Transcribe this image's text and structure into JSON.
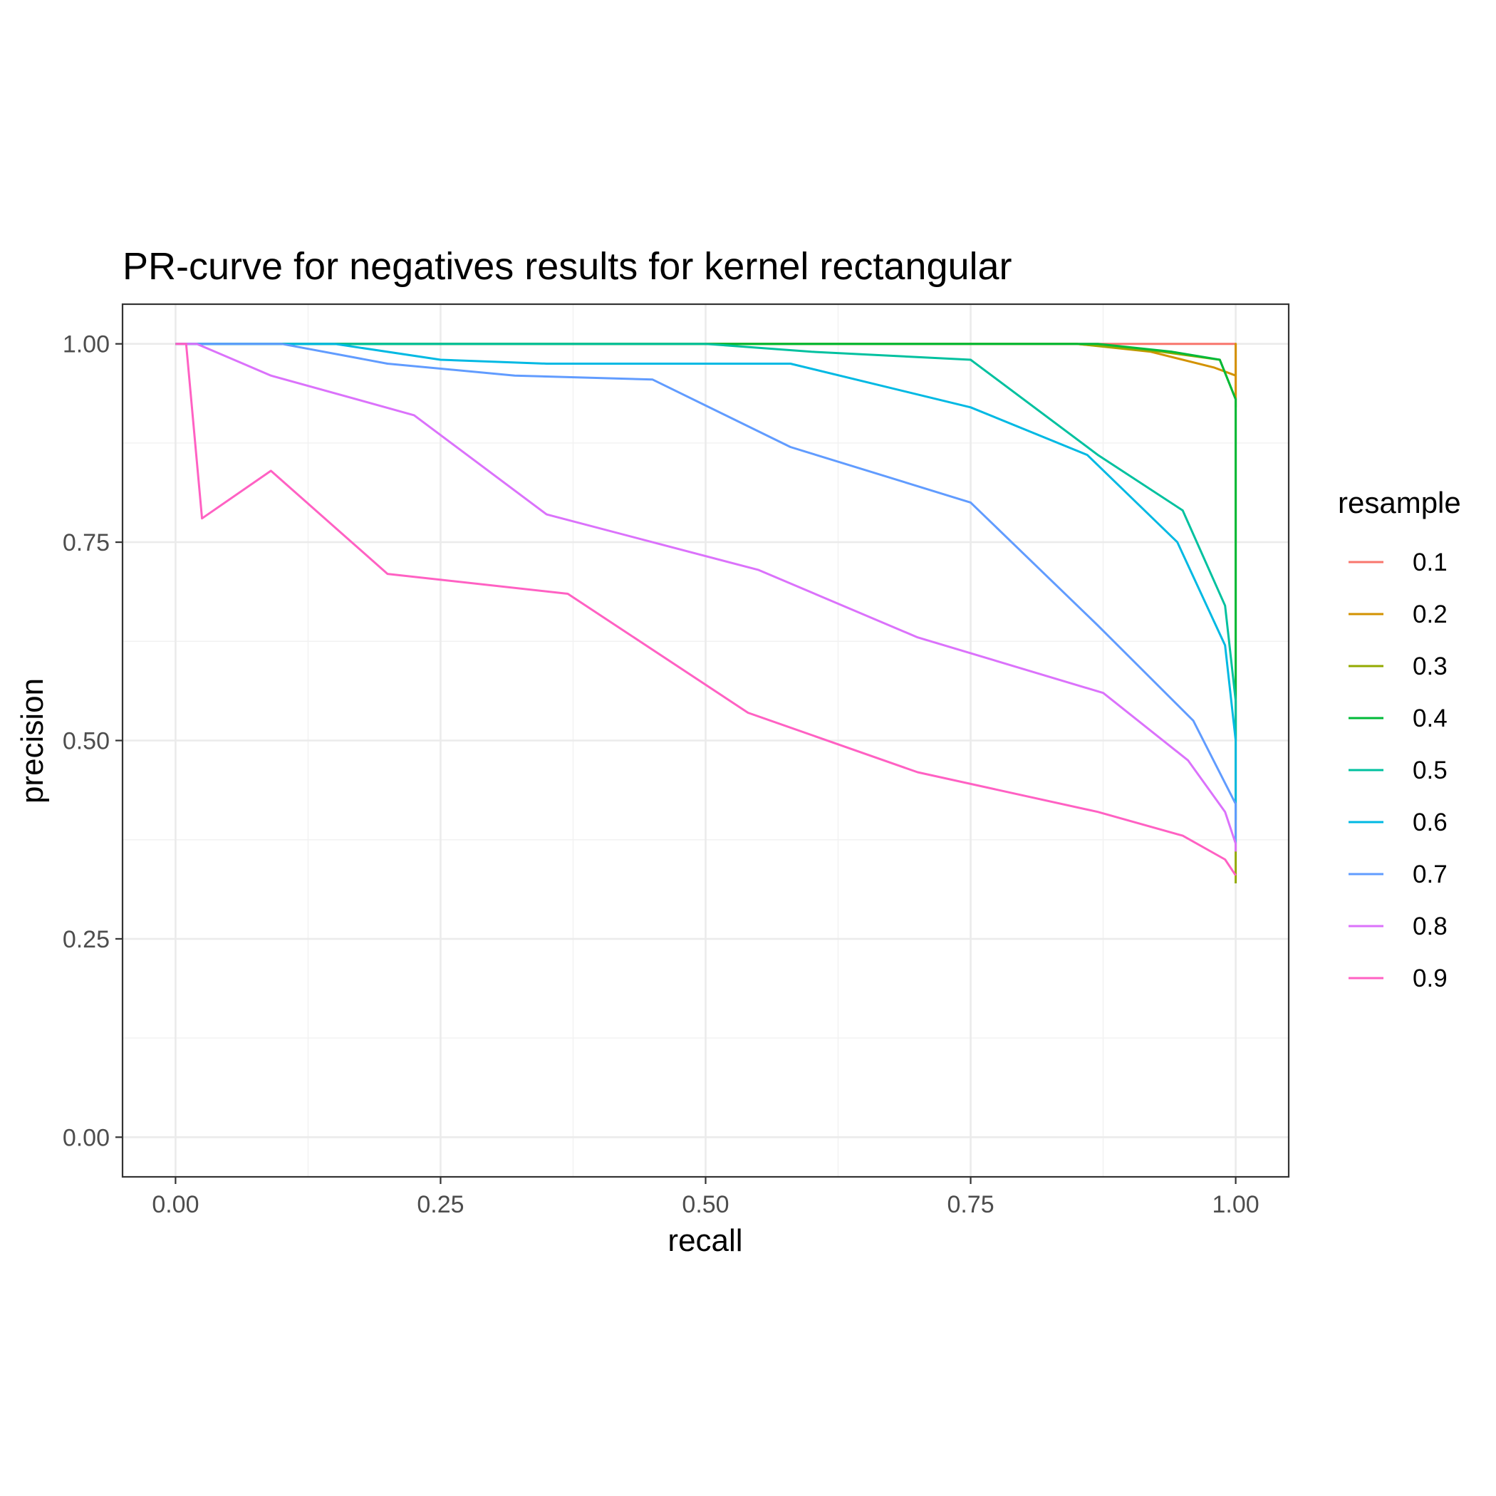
{
  "chart_data": {
    "type": "line",
    "title": "PR-curve for negatives results for kernel rectangular",
    "xlabel": "recall",
    "ylabel": "precision",
    "xlim": [
      -0.05,
      1.05
    ],
    "ylim": [
      -0.05,
      1.05
    ],
    "x_ticks": [
      0.0,
      0.25,
      0.5,
      0.75,
      1.0
    ],
    "x_tick_labels": [
      "0.00",
      "0.25",
      "0.50",
      "0.75",
      "1.00"
    ],
    "y_ticks": [
      0.0,
      0.25,
      0.5,
      0.75,
      1.0
    ],
    "y_tick_labels": [
      "0.00",
      "0.25",
      "0.50",
      "0.75",
      "1.00"
    ],
    "grid": true,
    "legend": {
      "title": "resample",
      "position": "right"
    },
    "series": [
      {
        "name": "0.1",
        "color": "#F8766D",
        "points": [
          [
            0.0,
            1.0
          ],
          [
            1.0,
            1.0
          ],
          [
            1.0,
            0.93
          ]
        ]
      },
      {
        "name": "0.2",
        "color": "#D39200",
        "points": [
          [
            0.0,
            1.0
          ],
          [
            0.5,
            1.0
          ],
          [
            0.85,
            1.0
          ],
          [
            0.92,
            0.99
          ],
          [
            0.98,
            0.97
          ],
          [
            1.0,
            0.96
          ],
          [
            1.0,
            1.0
          ],
          [
            1.0,
            0.92
          ]
        ]
      },
      {
        "name": "0.3",
        "color": "#93AA00",
        "points": [
          [
            0.0,
            1.0
          ],
          [
            0.5,
            1.0
          ],
          [
            0.85,
            1.0
          ],
          [
            0.93,
            0.99
          ],
          [
            0.985,
            0.98
          ],
          [
            1.0,
            0.93
          ],
          [
            1.0,
            0.32
          ]
        ]
      },
      {
        "name": "0.4",
        "color": "#00BA38",
        "points": [
          [
            0.0,
            1.0
          ],
          [
            0.6,
            1.0
          ],
          [
            0.87,
            1.0
          ],
          [
            0.94,
            0.99
          ],
          [
            0.985,
            0.98
          ],
          [
            1.0,
            0.93
          ],
          [
            1.0,
            0.5
          ]
        ]
      },
      {
        "name": "0.5",
        "color": "#00C19F",
        "points": [
          [
            0.0,
            1.0
          ],
          [
            0.5,
            1.0
          ],
          [
            0.6,
            0.99
          ],
          [
            0.75,
            0.98
          ],
          [
            0.87,
            0.86
          ],
          [
            0.95,
            0.79
          ],
          [
            0.99,
            0.67
          ],
          [
            1.0,
            0.55
          ],
          [
            1.0,
            0.5
          ]
        ]
      },
      {
        "name": "0.6",
        "color": "#00B9E3",
        "points": [
          [
            0.0,
            1.0
          ],
          [
            0.15,
            1.0
          ],
          [
            0.25,
            0.98
          ],
          [
            0.35,
            0.975
          ],
          [
            0.45,
            0.975
          ],
          [
            0.58,
            0.975
          ],
          [
            0.75,
            0.92
          ],
          [
            0.86,
            0.86
          ],
          [
            0.945,
            0.75
          ],
          [
            0.99,
            0.62
          ],
          [
            1.0,
            0.5
          ],
          [
            1.0,
            0.4
          ]
        ]
      },
      {
        "name": "0.7",
        "color": "#619CFF",
        "points": [
          [
            0.0,
            1.0
          ],
          [
            0.1,
            1.0
          ],
          [
            0.2,
            0.975
          ],
          [
            0.32,
            0.96
          ],
          [
            0.45,
            0.955
          ],
          [
            0.58,
            0.87
          ],
          [
            0.75,
            0.8
          ],
          [
            0.87,
            0.645
          ],
          [
            0.96,
            0.525
          ],
          [
            1.0,
            0.42
          ],
          [
            1.0,
            0.37
          ]
        ]
      },
      {
        "name": "0.8",
        "color": "#DB72FB",
        "points": [
          [
            0.0,
            1.0
          ],
          [
            0.02,
            1.0
          ],
          [
            0.09,
            0.96
          ],
          [
            0.225,
            0.91
          ],
          [
            0.35,
            0.785
          ],
          [
            0.55,
            0.715
          ],
          [
            0.7,
            0.63
          ],
          [
            0.875,
            0.56
          ],
          [
            0.955,
            0.475
          ],
          [
            0.99,
            0.41
          ],
          [
            1.0,
            0.37
          ],
          [
            1.0,
            0.36
          ]
        ]
      },
      {
        "name": "0.9",
        "color": "#FF61C3",
        "points": [
          [
            0.0,
            1.0
          ],
          [
            0.01,
            1.0
          ],
          [
            0.025,
            0.78
          ],
          [
            0.09,
            0.84
          ],
          [
            0.2,
            0.71
          ],
          [
            0.37,
            0.685
          ],
          [
            0.54,
            0.535
          ],
          [
            0.7,
            0.46
          ],
          [
            0.87,
            0.41
          ],
          [
            0.95,
            0.38
          ],
          [
            0.99,
            0.35
          ],
          [
            1.0,
            0.33
          ]
        ]
      }
    ]
  }
}
